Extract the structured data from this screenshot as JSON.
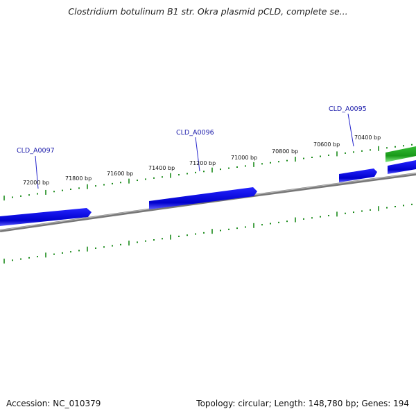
{
  "title": "Clostridium botulinum B1 str. Okra plasmid pCLD, complete se...",
  "footer": {
    "accession": "Accession: NC_010379",
    "topology": "Topology: circular; Length: 148,780 bp; Genes: 194"
  },
  "scale_ticks": [
    "72000 bp",
    "71800 bp",
    "71600 bp",
    "71400 bp",
    "71200 bp",
    "71000 bp",
    "70800 bp",
    "70600 bp",
    "70400 bp"
  ],
  "gene_labels": [
    "CLD_A0097",
    "CLD_A0096",
    "CLD_A0095"
  ],
  "colors": {
    "gene_forward": "#1010dd",
    "gene_highlight": "#22aa22",
    "backbone": "#888888",
    "ticks": "#1a8a1a",
    "label": "#1a1aaa"
  }
}
